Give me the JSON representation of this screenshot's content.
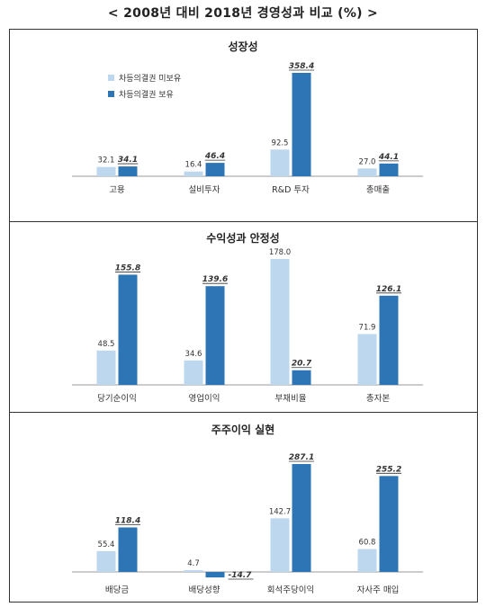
{
  "page_title": "< 2008년 대비 2018년 경영성과 비교 (%) >",
  "colors": {
    "light": "#bdd7ee",
    "dark": "#2e75b6",
    "axis": "#999999",
    "text": "#333333"
  },
  "chart_data": [
    {
      "type": "bar",
      "title": "성장성",
      "categories": [
        "고용",
        "설비투자",
        "R&D 투자",
        "총매출"
      ],
      "series": [
        {
          "name": "차등의결권 미보유",
          "values": [
            32.1,
            16.4,
            92.5,
            27.0
          ]
        },
        {
          "name": "차등의결권 보유",
          "values": [
            34.1,
            46.4,
            358.4,
            44.1
          ]
        }
      ],
      "value_labels": [
        [
          "32.1",
          "16.4",
          "92.5",
          "27.0"
        ],
        [
          "34.1",
          "46.4",
          "358.4",
          "44.1"
        ]
      ],
      "legend": "top-left",
      "grid": false
    },
    {
      "type": "bar",
      "title": "수익성과 안정성",
      "categories": [
        "당기순이익",
        "영업이익",
        "부채비율",
        "총자본"
      ],
      "series": [
        {
          "name": "차등의결권 미보유",
          "values": [
            48.5,
            34.6,
            178.0,
            71.9
          ]
        },
        {
          "name": "차등의결권 보유",
          "values": [
            155.8,
            139.6,
            20.7,
            126.1
          ]
        }
      ],
      "value_labels": [
        [
          "48.5",
          "34.6",
          "178.0",
          "71.9"
        ],
        [
          "155.8",
          "139.6",
          "20.7",
          "126.1"
        ]
      ],
      "legend": "none",
      "grid": false
    },
    {
      "type": "bar",
      "title": "주주이익 실현",
      "categories": [
        "배당금",
        "배당성향",
        "회석주당이익",
        "자사주 매입"
      ],
      "series": [
        {
          "name": "차등의결권 미보유",
          "values": [
            55.4,
            4.7,
            142.7,
            60.8
          ]
        },
        {
          "name": "차등의결권 보유",
          "values": [
            118.4,
            -14.7,
            287.1,
            255.2
          ]
        }
      ],
      "value_labels": [
        [
          "55.4",
          "4.7",
          "142.7",
          "60.8"
        ],
        [
          "118.4",
          "-14.7",
          "287.1",
          "255.2"
        ]
      ],
      "legend": "none",
      "grid": false
    }
  ]
}
